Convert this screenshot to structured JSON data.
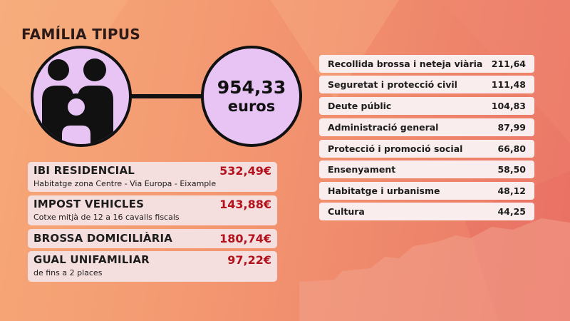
{
  "title": "FAMÍLIA TIPUS",
  "total": {
    "amount": "954,33",
    "unit": "euros"
  },
  "icons": {
    "family": "family-icon"
  },
  "colors": {
    "accent_purple": "#e7c4f4",
    "amount_red": "#b3121c",
    "card_bg": "#f5dede"
  },
  "taxes": [
    {
      "name": "IBI RESIDENCIAL",
      "amount": "532,49€",
      "desc": "Habitatge zona Centre - Via Europa - Eixample"
    },
    {
      "name": "IMPOST VEHICLES",
      "amount": "143,88€",
      "desc": "Cotxe mitjà de 12 a 16 cavalls fiscals"
    },
    {
      "name": "BROSSA DOMICILIÀRIA",
      "amount": "180,74€",
      "desc": ""
    },
    {
      "name": "GUAL UNIFAMILIAR",
      "amount": "97,22€",
      "desc": "de fins a 2 places"
    }
  ],
  "budget": [
    {
      "label": "Recollida brossa i neteja viària",
      "value": "211,64"
    },
    {
      "label": "Seguretat i protecció civil",
      "value": "111,48"
    },
    {
      "label": "Deute públic",
      "value": "104,83"
    },
    {
      "label": "Administració general",
      "value": "87,99"
    },
    {
      "label": "Protecció i promoció social",
      "value": "66,80"
    },
    {
      "label": "Ensenyament",
      "value": "58,50"
    },
    {
      "label": "Habitatge i urbanisme",
      "value": "48,12"
    },
    {
      "label": "Cultura",
      "value": "44,25"
    }
  ]
}
